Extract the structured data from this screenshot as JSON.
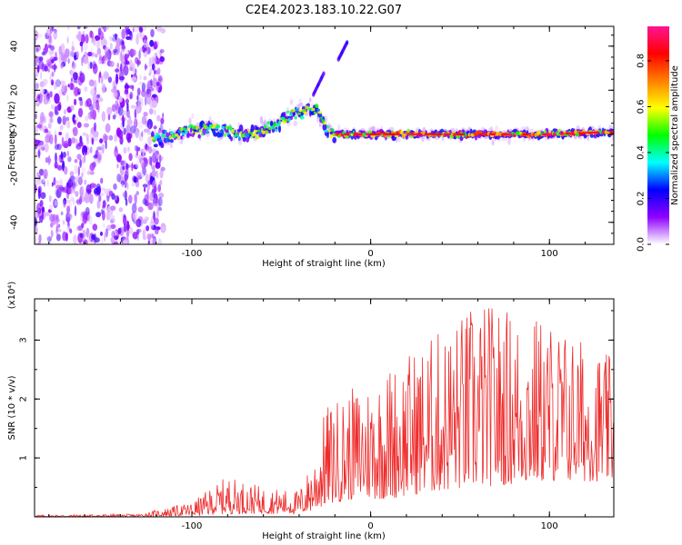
{
  "chart_data": [
    {
      "type": "heatmap",
      "title": "C2E4.2023.183.10.22.G07",
      "xlabel": "Height of straight line (km)",
      "ylabel": "Frequency (Hz)",
      "xlim": [
        -188,
        136
      ],
      "ylim": [
        -50,
        49
      ],
      "x_ticks": [
        -100,
        0,
        100
      ],
      "y_ticks": [
        -40,
        -20,
        0,
        20,
        40
      ],
      "grid": false,
      "colorbar": {
        "label": "Normalized spectral amplitude",
        "range": [
          0,
          0.95
        ],
        "ticks": [
          0.0,
          0.2,
          0.4,
          0.6,
          0.8
        ],
        "colormap": [
          "#ffffff",
          "#8f00ff",
          "#0000ff",
          "#00ffff",
          "#00ff00",
          "#ffff00",
          "#ff8000",
          "#ff0000",
          "#ff1493"
        ]
      },
      "features": [
        {
          "region": "noise",
          "x_range": [
            -188,
            -120
          ],
          "freq_range": [
            -50,
            49
          ],
          "amplitude": 0.2
        },
        {
          "region": "ridge",
          "x": [
            -122,
            -110,
            -100,
            -90,
            -80,
            -70,
            -60,
            -50,
            -40,
            -30,
            -25,
            -20,
            0,
            50,
            100,
            136
          ],
          "freq": [
            -2,
            -1,
            2,
            3,
            1,
            -1,
            2,
            6,
            10,
            12,
            2,
            0,
            0,
            0,
            0,
            1
          ],
          "amplitude_peak": 0.9
        },
        {
          "region": "streak",
          "x": [
            -32,
            -26
          ],
          "freq": [
            18,
            28
          ]
        },
        {
          "region": "streak",
          "x": [
            -18,
            -13
          ],
          "freq": [
            34,
            42
          ]
        }
      ]
    },
    {
      "type": "line",
      "series_color": "#ee2c2c",
      "xlabel": "Height of straight line (km)",
      "ylabel": "SNR (10 * v/v)",
      "y_scale_label": "(x10⁴)",
      "xlim": [
        -188,
        136
      ],
      "ylim": [
        0,
        3.7
      ],
      "x_ticks": [
        -100,
        0,
        100
      ],
      "y_ticks": [
        1,
        2,
        3
      ],
      "grid": false,
      "envelope": [
        {
          "x": -188,
          "low": 0.0,
          "high": 0.03
        },
        {
          "x": -130,
          "low": 0.0,
          "high": 0.05
        },
        {
          "x": -100,
          "low": 0.02,
          "high": 0.25
        },
        {
          "x": -80,
          "low": 0.05,
          "high": 0.7
        },
        {
          "x": -60,
          "low": 0.05,
          "high": 0.5
        },
        {
          "x": -40,
          "low": 0.05,
          "high": 0.45
        },
        {
          "x": -32,
          "low": 0.1,
          "high": 1.0
        },
        {
          "x": -25,
          "low": 0.2,
          "high": 1.9
        },
        {
          "x": -10,
          "low": 0.3,
          "high": 2.2
        },
        {
          "x": 10,
          "low": 0.3,
          "high": 2.6
        },
        {
          "x": 30,
          "low": 0.4,
          "high": 3.0
        },
        {
          "x": 60,
          "low": 0.5,
          "high": 3.7
        },
        {
          "x": 100,
          "low": 0.6,
          "high": 3.4
        },
        {
          "x": 136,
          "low": 0.6,
          "high": 2.7
        }
      ]
    }
  ]
}
